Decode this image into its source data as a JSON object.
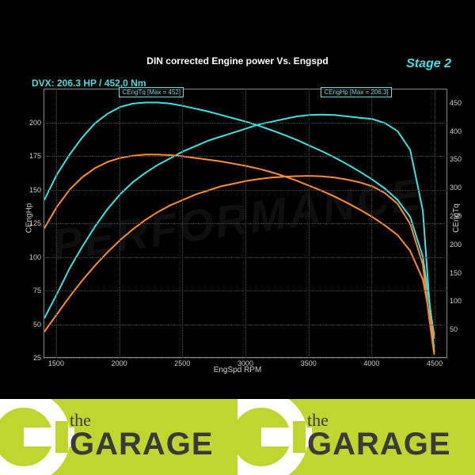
{
  "chart": {
    "title": "DIN corrected Engine power Vs. Engspd",
    "stage_label": "Stage 2",
    "stage_color": "#4fd9e0",
    "dvx_text": "DVX:  206.3 HP / 452,0 Nm",
    "dvx_color": "#4fd9e0",
    "background": "#000000",
    "grid_color": "#444444",
    "axis_color": "#888888",
    "text_color": "#cccccc",
    "x": {
      "label": "EngSpd RPM",
      "min": 1400,
      "max": 4600,
      "ticks": [
        1500,
        2000,
        2500,
        3000,
        3500,
        4000,
        4500
      ]
    },
    "y_left": {
      "label": "CEngHp",
      "min": 25,
      "max": 225,
      "ticks": [
        25,
        50,
        75,
        100,
        125,
        150,
        175,
        200
      ]
    },
    "y_right": {
      "label": "CEngTq",
      "min": 0,
      "max": 475,
      "ticks": [
        50,
        100,
        150,
        200,
        250,
        300,
        350,
        400,
        450
      ]
    },
    "callouts": [
      {
        "text": "CEngTq [Max = 452]",
        "x_rpm": 2250,
        "color": "#6fd9d9"
      },
      {
        "text": "CEngHp [Max = 206.3]",
        "x_rpm": 3850,
        "color": "#6fd9d9"
      }
    ],
    "series": [
      {
        "name": "hp_stage2",
        "axis": "left",
        "color": "#3fe0e0",
        "width": 2,
        "points": [
          [
            1400,
            55
          ],
          [
            1500,
            73
          ],
          [
            1600,
            92
          ],
          [
            1700,
            108
          ],
          [
            1800,
            123
          ],
          [
            1900,
            136
          ],
          [
            2000,
            147
          ],
          [
            2100,
            156
          ],
          [
            2200,
            163
          ],
          [
            2300,
            169
          ],
          [
            2400,
            174
          ],
          [
            2500,
            179
          ],
          [
            2600,
            183
          ],
          [
            2700,
            187
          ],
          [
            2800,
            190
          ],
          [
            2900,
            193
          ],
          [
            3000,
            196
          ],
          [
            3100,
            199
          ],
          [
            3200,
            201
          ],
          [
            3300,
            203
          ],
          [
            3400,
            205
          ],
          [
            3500,
            206
          ],
          [
            3600,
            206.3
          ],
          [
            3700,
            206
          ],
          [
            3800,
            205
          ],
          [
            3900,
            204
          ],
          [
            4000,
            203
          ],
          [
            4100,
            200
          ],
          [
            4200,
            194
          ],
          [
            4300,
            180
          ],
          [
            4400,
            135
          ],
          [
            4450,
            70
          ],
          [
            4490,
            30
          ]
        ]
      },
      {
        "name": "tq_stage2",
        "axis": "right",
        "color": "#3fe0e0",
        "width": 2,
        "points": [
          [
            1400,
            280
          ],
          [
            1500,
            325
          ],
          [
            1600,
            360
          ],
          [
            1700,
            390
          ],
          [
            1800,
            415
          ],
          [
            1900,
            432
          ],
          [
            2000,
            444
          ],
          [
            2100,
            450
          ],
          [
            2200,
            452
          ],
          [
            2300,
            452
          ],
          [
            2400,
            450
          ],
          [
            2500,
            446
          ],
          [
            2600,
            441
          ],
          [
            2700,
            436
          ],
          [
            2800,
            430
          ],
          [
            2900,
            424
          ],
          [
            3000,
            418
          ],
          [
            3100,
            411
          ],
          [
            3200,
            403
          ],
          [
            3300,
            395
          ],
          [
            3400,
            386
          ],
          [
            3500,
            376
          ],
          [
            3600,
            366
          ],
          [
            3700,
            355
          ],
          [
            3800,
            343
          ],
          [
            3900,
            330
          ],
          [
            4000,
            316
          ],
          [
            4100,
            300
          ],
          [
            4200,
            280
          ],
          [
            4300,
            250
          ],
          [
            4400,
            180
          ],
          [
            4450,
            100
          ],
          [
            4490,
            40
          ]
        ]
      },
      {
        "name": "hp_baseline",
        "axis": "left",
        "color": "#ff8c2e",
        "width": 2,
        "points": [
          [
            1400,
            45
          ],
          [
            1500,
            58
          ],
          [
            1600,
            71
          ],
          [
            1700,
            83
          ],
          [
            1800,
            94
          ],
          [
            1900,
            104
          ],
          [
            2000,
            113
          ],
          [
            2100,
            121
          ],
          [
            2200,
            128
          ],
          [
            2300,
            134
          ],
          [
            2400,
            139
          ],
          [
            2500,
            143
          ],
          [
            2600,
            147
          ],
          [
            2700,
            150
          ],
          [
            2800,
            153
          ],
          [
            2900,
            155
          ],
          [
            3000,
            157
          ],
          [
            3100,
            158.5
          ],
          [
            3200,
            159.5
          ],
          [
            3300,
            160.2
          ],
          [
            3400,
            160.6
          ],
          [
            3500,
            160.8
          ],
          [
            3600,
            160.5
          ],
          [
            3700,
            159.5
          ],
          [
            3800,
            158
          ],
          [
            3900,
            156
          ],
          [
            4000,
            153
          ],
          [
            4100,
            148
          ],
          [
            4200,
            140
          ],
          [
            4300,
            125
          ],
          [
            4400,
            95
          ],
          [
            4450,
            55
          ],
          [
            4490,
            28
          ]
        ]
      },
      {
        "name": "tq_baseline",
        "axis": "right",
        "color": "#ff8c2e",
        "width": 2,
        "points": [
          [
            1400,
            230
          ],
          [
            1500,
            268
          ],
          [
            1600,
            298
          ],
          [
            1700,
            320
          ],
          [
            1800,
            336
          ],
          [
            1900,
            347
          ],
          [
            2000,
            354
          ],
          [
            2100,
            358
          ],
          [
            2200,
            360
          ],
          [
            2300,
            360
          ],
          [
            2400,
            359
          ],
          [
            2500,
            357
          ],
          [
            2600,
            354
          ],
          [
            2700,
            351
          ],
          [
            2800,
            348
          ],
          [
            2900,
            344
          ],
          [
            3000,
            340
          ],
          [
            3100,
            335
          ],
          [
            3200,
            329
          ],
          [
            3300,
            322
          ],
          [
            3400,
            314
          ],
          [
            3500,
            305
          ],
          [
            3600,
            296
          ],
          [
            3700,
            286
          ],
          [
            3800,
            275
          ],
          [
            3900,
            263
          ],
          [
            4000,
            250
          ],
          [
            4100,
            235
          ],
          [
            4200,
            218
          ],
          [
            4300,
            190
          ],
          [
            4400,
            140
          ],
          [
            4450,
            80
          ],
          [
            4490,
            35
          ]
        ]
      }
    ],
    "watermark": "PERFORMANCE"
  },
  "footer": {
    "bg": "#bed62f",
    "accent": "#ffffff",
    "text_dark": "#3a3a3a",
    "text_accent": "#bed62f",
    "the": "the",
    "garage": "GARAGE"
  }
}
